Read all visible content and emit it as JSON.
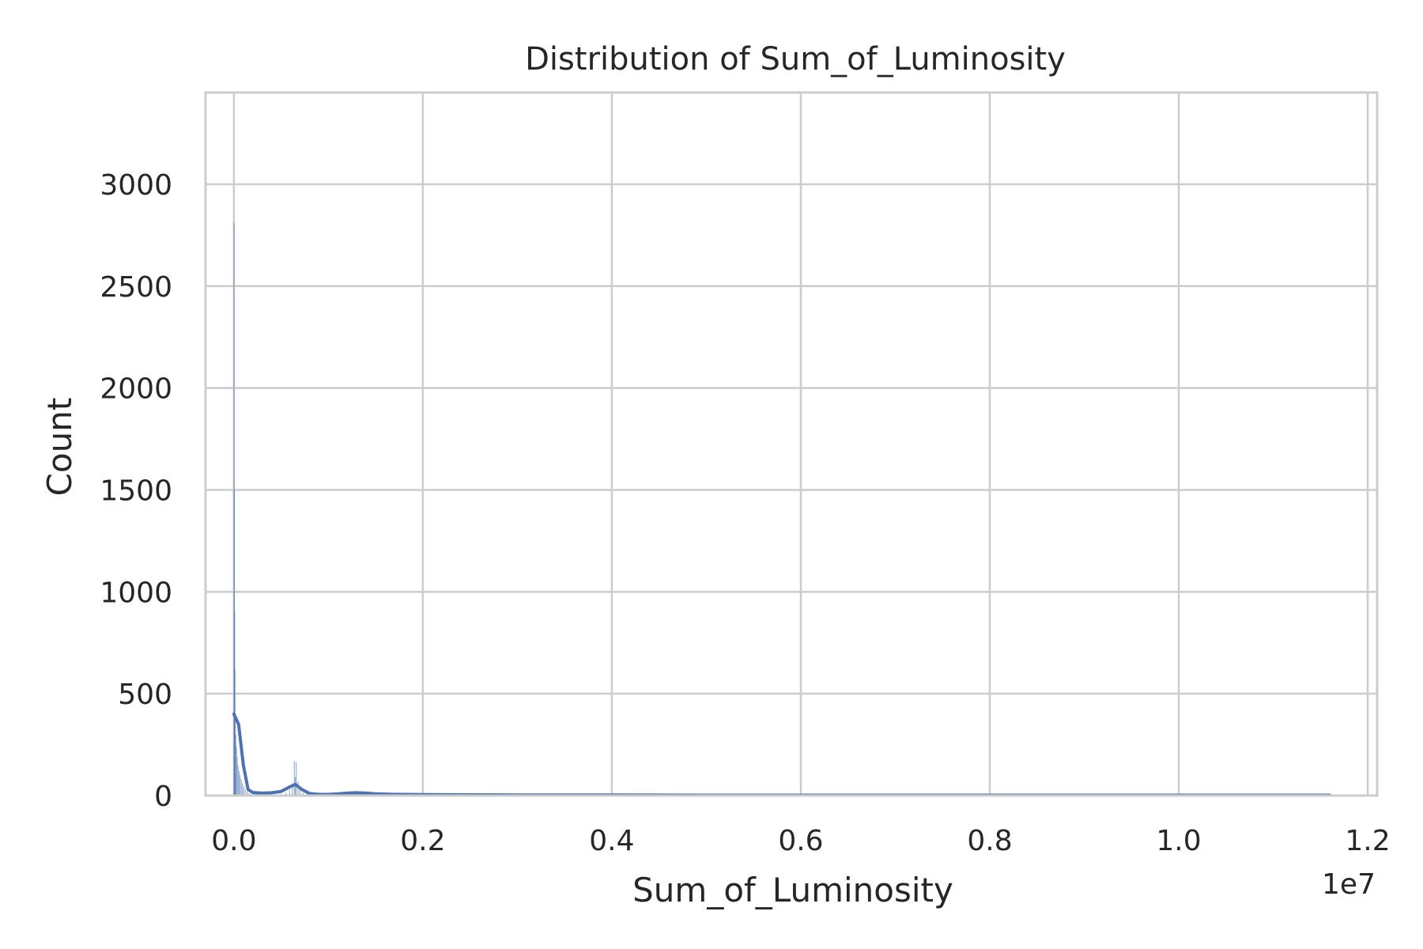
{
  "chart_data": {
    "type": "histogram",
    "title": "Distribution of Sum_of_Luminosity",
    "xlabel": "Sum_of_Luminosity",
    "ylabel": "Count",
    "x_offset_label": "1e7",
    "x_scale": 10000000,
    "xlim": [
      -0.03,
      1.21
    ],
    "ylim": [
      0,
      3450
    ],
    "x_ticks": [
      0.0,
      0.2,
      0.4,
      0.6,
      0.8,
      1.0,
      1.2
    ],
    "x_tick_labels": [
      "0.0",
      "0.2",
      "0.4",
      "0.6",
      "0.8",
      "1.0",
      "1.2"
    ],
    "y_ticks": [
      0,
      500,
      1000,
      1500,
      2000,
      2500,
      3000
    ],
    "y_tick_labels": [
      "0",
      "500",
      "1000",
      "1500",
      "2000",
      "2500",
      "3000"
    ],
    "grid": true,
    "legend": "none",
    "colors": {
      "bars": "#4c72b0",
      "kde": "#4c72b0",
      "grid": "#cccccc",
      "spine": "#cccccc"
    },
    "bins": [
      {
        "x": 0.0002,
        "count": 2810
      },
      {
        "x": 0.0005,
        "count": 1500
      },
      {
        "x": 0.0008,
        "count": 900
      },
      {
        "x": 0.0011,
        "count": 620
      },
      {
        "x": 0.0015,
        "count": 380
      },
      {
        "x": 0.002,
        "count": 300
      },
      {
        "x": 0.0027,
        "count": 240
      },
      {
        "x": 0.0035,
        "count": 190
      },
      {
        "x": 0.0045,
        "count": 150
      },
      {
        "x": 0.0055,
        "count": 120
      },
      {
        "x": 0.0065,
        "count": 100
      },
      {
        "x": 0.0078,
        "count": 80
      },
      {
        "x": 0.009,
        "count": 60
      },
      {
        "x": 0.0105,
        "count": 45
      },
      {
        "x": 0.012,
        "count": 30
      },
      {
        "x": 0.014,
        "count": 20
      },
      {
        "x": 0.016,
        "count": 12
      },
      {
        "x": 0.019,
        "count": 8
      },
      {
        "x": 0.023,
        "count": 5
      },
      {
        "x": 0.03,
        "count": 4
      },
      {
        "x": 0.04,
        "count": 5
      },
      {
        "x": 0.05,
        "count": 8
      },
      {
        "x": 0.055,
        "count": 15
      },
      {
        "x": 0.059,
        "count": 30
      },
      {
        "x": 0.062,
        "count": 60
      },
      {
        "x": 0.064,
        "count": 170
      },
      {
        "x": 0.065,
        "count": 90
      },
      {
        "x": 0.066,
        "count": 165
      },
      {
        "x": 0.068,
        "count": 70
      },
      {
        "x": 0.07,
        "count": 40
      },
      {
        "x": 0.073,
        "count": 15
      },
      {
        "x": 0.078,
        "count": 6
      },
      {
        "x": 0.11,
        "count": 10
      },
      {
        "x": 0.13,
        "count": 12
      },
      {
        "x": 0.145,
        "count": 15
      },
      {
        "x": 0.155,
        "count": 8
      },
      {
        "x": 0.215,
        "count": 8
      }
    ],
    "kde": {
      "x": [
        0.0,
        0.005,
        0.01,
        0.015,
        0.02,
        0.03,
        0.04,
        0.05,
        0.058,
        0.065,
        0.072,
        0.08,
        0.09,
        0.1,
        0.11,
        0.12,
        0.13,
        0.14,
        0.15,
        0.17,
        0.2,
        0.25,
        0.3,
        0.4,
        0.5,
        0.6,
        0.7,
        0.8,
        0.9,
        1.0,
        1.1,
        1.16
      ],
      "y": [
        400,
        350,
        150,
        30,
        15,
        12,
        14,
        20,
        40,
        55,
        30,
        10,
        6,
        6,
        8,
        12,
        14,
        12,
        9,
        6,
        5,
        4,
        3,
        3,
        2,
        2,
        2,
        2,
        2,
        2,
        2,
        2
      ]
    }
  }
}
